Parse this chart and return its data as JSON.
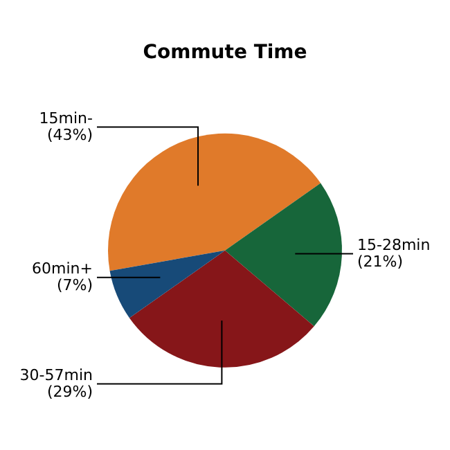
{
  "chart_data": {
    "type": "pie",
    "title": "Commute Time",
    "categories": [
      "15min-",
      "15-28min",
      "30-57min",
      "60min+"
    ],
    "values": [
      43,
      21,
      29,
      7
    ],
    "colors": [
      "#e07a2a",
      "#17663a",
      "#861619",
      "#174a78"
    ],
    "value_labels": [
      "(43%)",
      "(21%)",
      "(29%)",
      "(7%)"
    ],
    "legend": false
  }
}
